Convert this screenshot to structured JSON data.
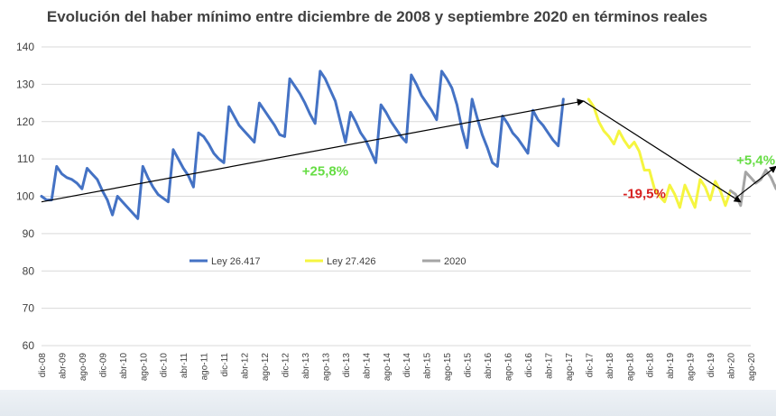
{
  "chart_data": {
    "type": "line",
    "title": "Evolución del haber mínimo entre diciembre de 2008 y septiembre 2020 en términos reales",
    "xlabel": "",
    "ylabel": "",
    "ylim": [
      60,
      140
    ],
    "yticks": [
      60,
      70,
      80,
      90,
      100,
      110,
      120,
      130,
      140
    ],
    "grid": "horizontal",
    "legend_position": "middle-left",
    "x_tick_labels": [
      "dic-08",
      "abr-09",
      "ago-09",
      "dic-09",
      "abr-10",
      "ago-10",
      "dic-10",
      "abr-11",
      "ago-11",
      "dic-11",
      "abr-12",
      "ago-12",
      "dic-12",
      "abr-13",
      "ago-13",
      "dic-13",
      "abr-14",
      "ago-14",
      "dic-14",
      "abr-15",
      "ago-15",
      "dic-15",
      "abr-16",
      "ago-16",
      "dic-16",
      "abr-17",
      "ago-17",
      "dic-17",
      "abr-18",
      "ago-18",
      "dic-18",
      "abr-19",
      "ago-19",
      "dic-19",
      "abr-20",
      "ago-20"
    ],
    "series": [
      {
        "name": "Ley 26.417",
        "color": "#4472C4",
        "x_start": 0,
        "values": [
          100,
          99,
          99,
          108,
          106,
          105,
          104.5,
          103.5,
          102,
          107.5,
          106,
          104.5,
          101.5,
          99,
          95,
          100,
          98.5,
          97,
          95.5,
          94,
          108,
          105,
          102.5,
          100.5,
          99.5,
          98.5,
          112.5,
          110,
          107.5,
          105.5,
          102.5,
          117,
          116,
          114,
          111.5,
          110,
          109,
          124,
          121.5,
          119,
          117.5,
          116,
          114.5,
          125,
          123,
          121,
          119,
          116.5,
          116,
          131.5,
          129.5,
          127.5,
          125,
          122,
          119.5,
          133.5,
          131.5,
          128.5,
          125.5,
          120,
          114.5,
          122.5,
          120,
          117,
          115,
          112,
          109,
          124.5,
          122.5,
          120,
          118,
          116,
          114.5,
          132.5,
          130,
          127,
          125,
          123,
          120.5,
          133.5,
          131.5,
          129,
          124.5,
          118,
          113,
          126,
          121,
          116.5,
          113,
          109,
          108,
          121.5,
          119.5,
          117,
          115.5,
          113.5,
          111.5,
          123,
          120.5,
          119,
          117,
          115,
          113.5,
          126
        ]
      },
      {
        "name": "Ley 27.426",
        "color": "#F5F540",
        "x_start": 108,
        "values": [
          126,
          124,
          120,
          117.5,
          116,
          114,
          117.5,
          115,
          113,
          114.5,
          112,
          107,
          107,
          102,
          100,
          98.5,
          103,
          100.5,
          97,
          103,
          100,
          97,
          104.5,
          102.5,
          99,
          104,
          101.5,
          97.5,
          101.5
        ]
      },
      {
        "name": "2020",
        "color": "#A5A5A5",
        "x_start": 136,
        "values": [
          101.5,
          100.5,
          97.5,
          106.5,
          105,
          103.5,
          104.5,
          107,
          105,
          102,
          107
        ]
      }
    ],
    "arrows": [
      {
        "color": "#000000",
        "from": [
          0,
          98.5
        ],
        "to": [
          107,
          125.5
        ]
      },
      {
        "color": "#000000",
        "from": [
          107,
          125.5
        ],
        "to": [
          138,
          98.5
        ]
      },
      {
        "color": "#000000",
        "from": [
          137,
          99.5
        ],
        "to": [
          145,
          108
        ]
      }
    ],
    "annotations": [
      {
        "text": "+25,8%",
        "color": "#66DD44",
        "x": 56,
        "y": 105.5
      },
      {
        "text": "-19,5%",
        "color": "#D82020",
        "x": 119,
        "y": 99.5
      },
      {
        "text": "+5,4%",
        "color": "#66DD44",
        "x": 141,
        "y": 108.5
      }
    ]
  }
}
